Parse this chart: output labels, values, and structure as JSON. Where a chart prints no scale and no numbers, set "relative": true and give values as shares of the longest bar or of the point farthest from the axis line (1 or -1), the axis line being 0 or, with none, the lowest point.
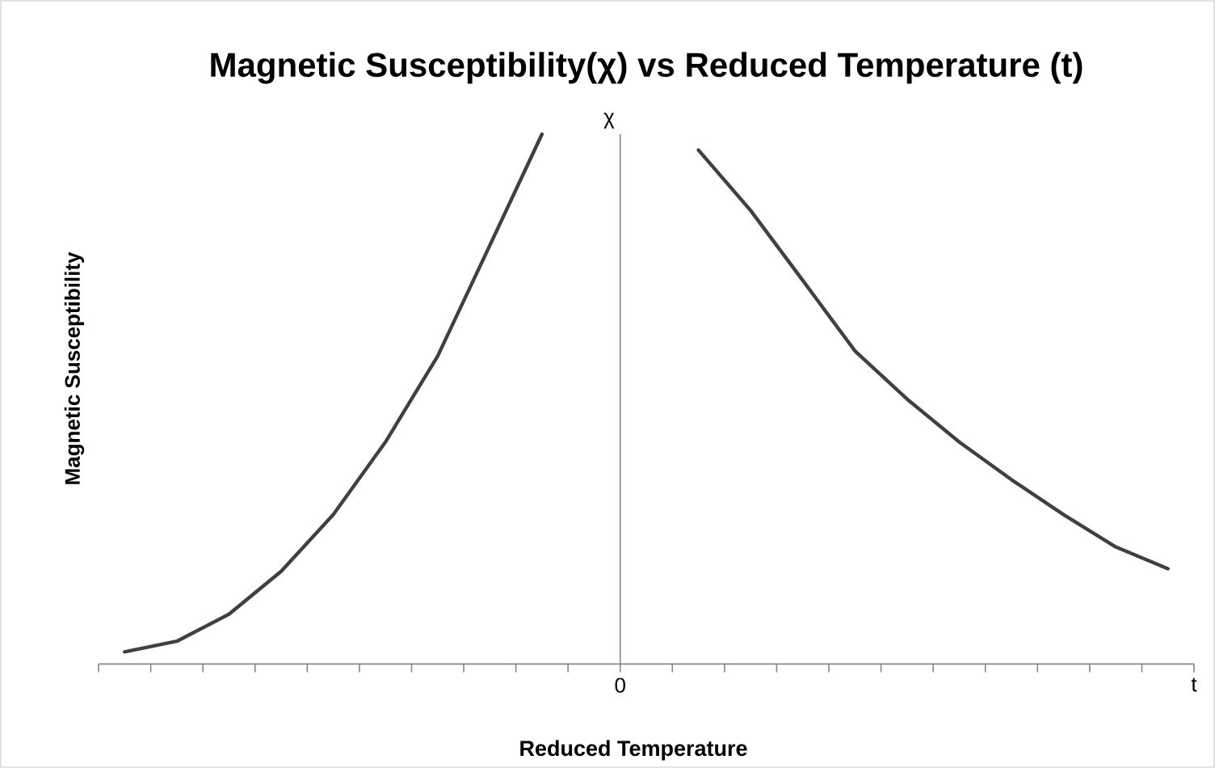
{
  "chart_data": {
    "type": "line",
    "title": "Magnetic Susceptibility(χ) vs Reduced Temperature (t)",
    "xlabel": "Reduced Temperature",
    "ylabel": "Magnetic Susceptibility",
    "annotations": [
      "χ",
      "0",
      "t"
    ],
    "relative": true,
    "categories": [
      null,
      null,
      null,
      null,
      null,
      null,
      null,
      null,
      null,
      null,
      null,
      null,
      null,
      null,
      null,
      null,
      null,
      null,
      null,
      null,
      null
    ],
    "series": [
      {
        "color": "#404040",
        "values": [
          0.023,
          0.043,
          0.094,
          0.175,
          0.282,
          0.419,
          0.581,
          0.79,
          1.0,
          null,
          null,
          null,
          null,
          null,
          null,
          null,
          null,
          null,
          null,
          null,
          null
        ]
      },
      {
        "color": "#404040",
        "values": [
          null,
          null,
          null,
          null,
          null,
          null,
          null,
          null,
          null,
          null,
          null,
          0.97,
          0.856,
          0.724,
          0.591,
          0.5,
          0.419,
          0.348,
          0.282,
          0.221,
          0.18
        ]
      }
    ],
    "marker": "none",
    "line_style": "solid"
  }
}
